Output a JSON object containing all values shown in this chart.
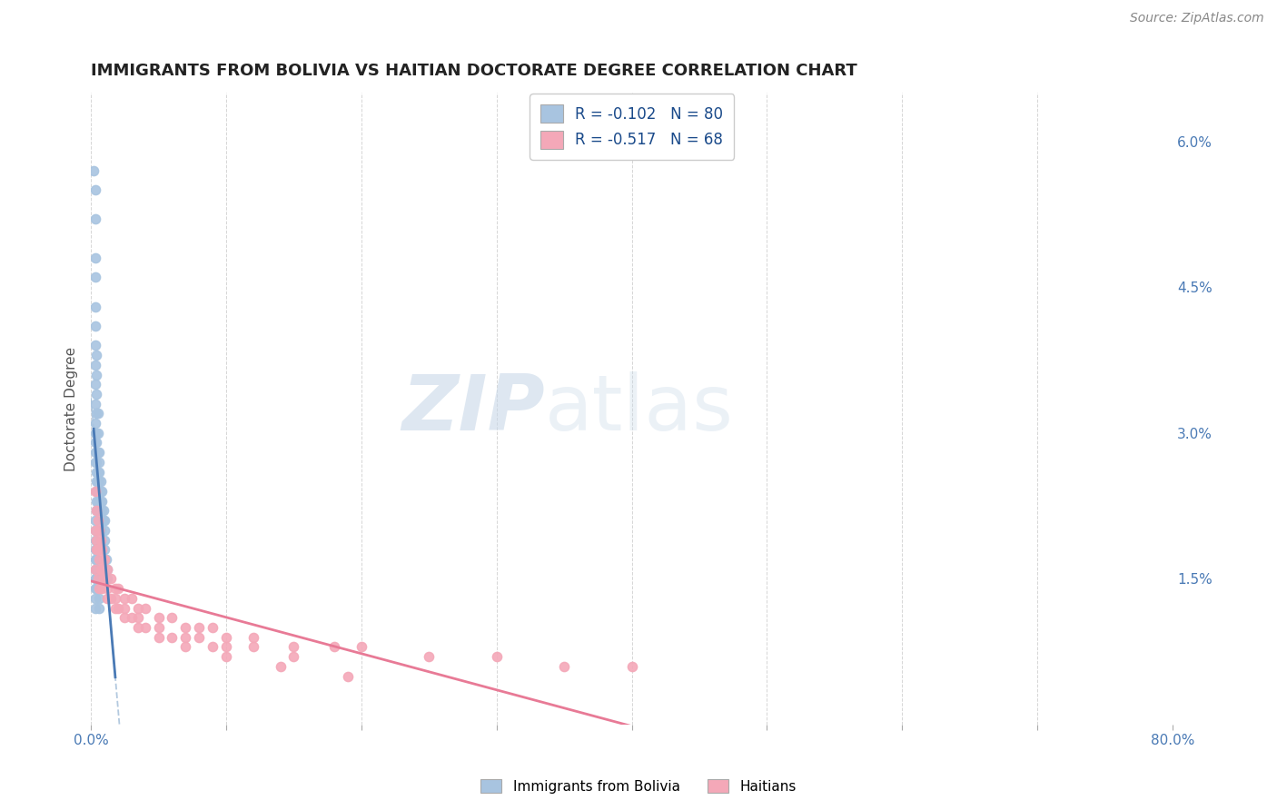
{
  "title": "IMMIGRANTS FROM BOLIVIA VS HAITIAN DOCTORATE DEGREE CORRELATION CHART",
  "source": "Source: ZipAtlas.com",
  "ylabel": "Doctorate Degree",
  "right_yticks": [
    "6.0%",
    "4.5%",
    "3.0%",
    "1.5%"
  ],
  "right_ytick_vals": [
    0.06,
    0.045,
    0.03,
    0.015
  ],
  "legend1_text": "R = -0.102   N = 80",
  "legend2_text": "R = -0.517   N = 68",
  "bolivia_color": "#a8c4e0",
  "haiti_color": "#f4a8b8",
  "bolivia_line_color": "#4a7ab5",
  "haiti_line_color": "#e87a96",
  "bolivia_dash_color": "#a0bcd8",
  "watermark_zip": "ZIP",
  "watermark_atlas": "atlas",
  "xlim": [
    0.0,
    0.8
  ],
  "ylim": [
    0.0,
    0.065
  ],
  "bolivia_scatter_x": [
    0.002,
    0.003,
    0.003,
    0.003,
    0.003,
    0.003,
    0.003,
    0.003,
    0.003,
    0.003,
    0.003,
    0.003,
    0.003,
    0.003,
    0.003,
    0.003,
    0.004,
    0.004,
    0.004,
    0.004,
    0.004,
    0.004,
    0.004,
    0.004,
    0.004,
    0.004,
    0.004,
    0.004,
    0.004,
    0.005,
    0.005,
    0.005,
    0.005,
    0.005,
    0.005,
    0.005,
    0.005,
    0.006,
    0.006,
    0.006,
    0.006,
    0.006,
    0.006,
    0.007,
    0.007,
    0.007,
    0.007,
    0.008,
    0.008,
    0.008,
    0.009,
    0.009,
    0.01,
    0.01,
    0.01,
    0.01,
    0.01,
    0.011,
    0.012,
    0.012,
    0.003,
    0.003,
    0.003,
    0.003,
    0.003,
    0.003,
    0.003,
    0.003,
    0.003,
    0.003,
    0.004,
    0.004,
    0.004,
    0.004,
    0.004,
    0.005,
    0.005,
    0.006,
    0.006,
    0.007
  ],
  "bolivia_scatter_y": [
    0.057,
    0.055,
    0.052,
    0.048,
    0.046,
    0.043,
    0.041,
    0.039,
    0.037,
    0.035,
    0.033,
    0.031,
    0.03,
    0.029,
    0.028,
    0.027,
    0.038,
    0.036,
    0.034,
    0.032,
    0.03,
    0.029,
    0.028,
    0.027,
    0.026,
    0.025,
    0.024,
    0.023,
    0.022,
    0.032,
    0.03,
    0.028,
    0.026,
    0.025,
    0.024,
    0.023,
    0.022,
    0.028,
    0.027,
    0.026,
    0.025,
    0.024,
    0.023,
    0.025,
    0.024,
    0.023,
    0.022,
    0.024,
    0.023,
    0.022,
    0.022,
    0.021,
    0.021,
    0.02,
    0.019,
    0.018,
    0.017,
    0.017,
    0.016,
    0.015,
    0.021,
    0.02,
    0.019,
    0.018,
    0.017,
    0.016,
    0.015,
    0.014,
    0.013,
    0.012,
    0.018,
    0.017,
    0.016,
    0.015,
    0.014,
    0.015,
    0.014,
    0.013,
    0.012,
    0.02
  ],
  "haiti_scatter_x": [
    0.003,
    0.004,
    0.005,
    0.006,
    0.007,
    0.008,
    0.009,
    0.01,
    0.012,
    0.015,
    0.018,
    0.02,
    0.025,
    0.03,
    0.035,
    0.04,
    0.05,
    0.06,
    0.07,
    0.08,
    0.09,
    0.1,
    0.12,
    0.15,
    0.18,
    0.2,
    0.25,
    0.3,
    0.35,
    0.4,
    0.003,
    0.004,
    0.005,
    0.006,
    0.007,
    0.008,
    0.009,
    0.01,
    0.012,
    0.015,
    0.018,
    0.02,
    0.025,
    0.03,
    0.035,
    0.04,
    0.05,
    0.06,
    0.07,
    0.08,
    0.09,
    0.1,
    0.12,
    0.15,
    0.003,
    0.005,
    0.008,
    0.012,
    0.018,
    0.025,
    0.035,
    0.05,
    0.07,
    0.1,
    0.14,
    0.19,
    0.004,
    0.006
  ],
  "haiti_scatter_y": [
    0.024,
    0.022,
    0.021,
    0.02,
    0.019,
    0.018,
    0.017,
    0.017,
    0.016,
    0.015,
    0.014,
    0.014,
    0.013,
    0.013,
    0.012,
    0.012,
    0.011,
    0.011,
    0.01,
    0.01,
    0.01,
    0.009,
    0.009,
    0.008,
    0.008,
    0.008,
    0.007,
    0.007,
    0.006,
    0.006,
    0.02,
    0.019,
    0.018,
    0.017,
    0.016,
    0.016,
    0.015,
    0.015,
    0.014,
    0.013,
    0.013,
    0.012,
    0.012,
    0.011,
    0.011,
    0.01,
    0.01,
    0.009,
    0.009,
    0.009,
    0.008,
    0.008,
    0.008,
    0.007,
    0.016,
    0.015,
    0.014,
    0.013,
    0.012,
    0.011,
    0.01,
    0.009,
    0.008,
    0.007,
    0.006,
    0.005,
    0.018,
    0.014
  ]
}
